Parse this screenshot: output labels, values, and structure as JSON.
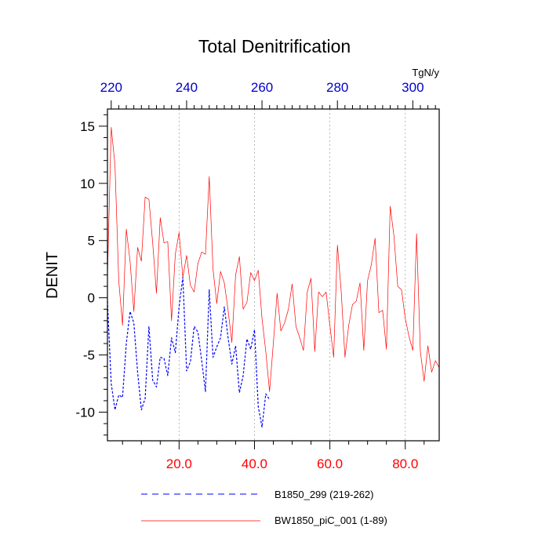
{
  "chart_data": {
    "type": "line",
    "title": "Total Denitrification",
    "units": "TgN/y",
    "ylabel": "DENIT",
    "ylim": [
      -12.5,
      16.5
    ],
    "yticks": [
      -10,
      -5,
      0,
      5,
      10,
      15
    ],
    "ytick_labels": [
      "-10",
      "-5",
      "0",
      "5",
      "10",
      "15"
    ],
    "x_bottom": {
      "range": [
        1,
        89
      ],
      "ticks": [
        20,
        40,
        60,
        80
      ],
      "tick_labels": [
        "20.0",
        "40.0",
        "60.0",
        "80.0"
      ],
      "color": "#ff0000"
    },
    "x_top": {
      "range": [
        219,
        307
      ],
      "ticks": [
        220,
        240,
        260,
        280,
        300
      ],
      "tick_labels": [
        "220",
        "240",
        "260",
        "280",
        "300"
      ],
      "color": "#0000cc"
    },
    "grid": "vertical dotted at major ticks",
    "legend_position": "bottom",
    "series": [
      {
        "name": "B1850_299 (219-262)",
        "axis": "top",
        "color": "#0000ff",
        "dash": "dashed",
        "x": [
          219,
          220,
          221,
          222,
          223,
          224,
          225,
          226,
          227,
          228,
          229,
          230,
          231,
          232,
          233,
          234,
          235,
          236,
          237,
          238,
          239,
          240,
          241,
          242,
          243,
          244,
          245,
          246,
          247,
          248,
          249,
          250,
          251,
          252,
          253,
          254,
          255,
          256,
          257,
          258,
          259,
          260,
          261,
          262
        ],
        "y": [
          -0.3,
          -7.5,
          -9.8,
          -8.5,
          -8.7,
          -4.0,
          -1.2,
          -2.2,
          -6.5,
          -9.8,
          -8.8,
          -2.5,
          -7.2,
          -7.8,
          -5.2,
          -5.3,
          -6.8,
          -3.5,
          -4.8,
          -0.8,
          1.8,
          -6.4,
          -5.6,
          -2.5,
          -3.0,
          -5.5,
          -8.2,
          0.7,
          -5.2,
          -4.3,
          -3.5,
          -0.8,
          -3.5,
          -5.8,
          -4.2,
          -8.3,
          -6.8,
          -3.6,
          -4.5,
          -2.8,
          -9.5,
          -11.3,
          -8.4,
          -8.9
        ]
      },
      {
        "name": "BW1850_piC_001 (1-89)",
        "axis": "bottom",
        "color": "#ff0000",
        "dash": "solid",
        "x": [
          1,
          2,
          3,
          4,
          5,
          6,
          7,
          8,
          9,
          10,
          11,
          12,
          13,
          14,
          15,
          16,
          17,
          18,
          19,
          20,
          21,
          22,
          23,
          24,
          25,
          26,
          27,
          28,
          29,
          30,
          31,
          32,
          33,
          34,
          35,
          36,
          37,
          38,
          39,
          40,
          41,
          42,
          43,
          44,
          45,
          46,
          47,
          48,
          49,
          50,
          51,
          52,
          53,
          54,
          55,
          56,
          57,
          58,
          59,
          60,
          61,
          62,
          63,
          64,
          65,
          66,
          67,
          68,
          69,
          70,
          71,
          72,
          73,
          74,
          75,
          76,
          77,
          78,
          79,
          80,
          81,
          82,
          83,
          84,
          85,
          86,
          87,
          88,
          89
        ],
        "y": [
          1.8,
          14.9,
          11.6,
          1.5,
          -2.4,
          6.0,
          3.2,
          -1.2,
          4.4,
          3.2,
          8.8,
          8.6,
          4.8,
          0.4,
          7.0,
          4.8,
          4.9,
          -2.0,
          3.8,
          5.7,
          1.8,
          3.7,
          1.1,
          0.5,
          3.0,
          4.0,
          3.8,
          10.6,
          2.5,
          -0.5,
          2.3,
          1.3,
          -1.1,
          -3.9,
          2.0,
          3.6,
          -1.0,
          -0.4,
          2.2,
          1.5,
          2.4,
          -1.8,
          -4.7,
          -8.2,
          -4.0,
          0.4,
          -2.9,
          -2.2,
          -1.0,
          1.2,
          -2.5,
          -3.5,
          -4.6,
          0.5,
          1.7,
          -4.7,
          0.5,
          0.1,
          0.5,
          -2.4,
          -5.2,
          4.6,
          0.6,
          -5.2,
          -2.4,
          -0.6,
          -0.3,
          1.3,
          -4.6,
          1.5,
          2.9,
          5.2,
          -1.3,
          -1.1,
          -4.5,
          8.0,
          5.4,
          1.0,
          0.7,
          -1.8,
          -3.4,
          -4.6,
          5.6,
          -4.7,
          -7.3,
          -4.2,
          -6.5,
          -5.5,
          -6.1
        ]
      }
    ]
  }
}
